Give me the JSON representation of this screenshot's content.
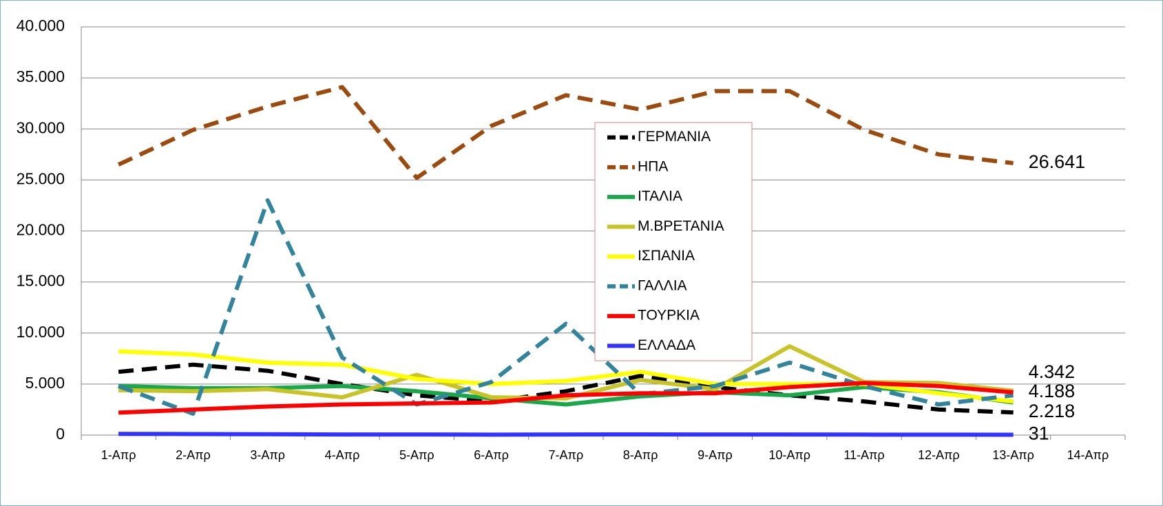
{
  "chart_data": {
    "type": "line",
    "categories": [
      "1-Απρ",
      "2-Απρ",
      "3-Απρ",
      "4-Απρ",
      "5-Απρ",
      "6-Απρ",
      "7-Απρ",
      "8-Απρ",
      "9-Απρ",
      "10-Απρ",
      "11-Απρ",
      "12-Απρ",
      "13-Απρ",
      "14-Απρ"
    ],
    "ylim": [
      0,
      40000
    ],
    "yticks": [
      0,
      {
        "value": 5000,
        "label": "5.000"
      },
      {
        "value": 10000,
        "label": "10.000"
      },
      {
        "value": 15000,
        "label": "15.000"
      },
      {
        "value": 20000,
        "label": "20.000"
      },
      {
        "value": 25000,
        "label": "25.000"
      },
      {
        "value": 30000,
        "label": "30.000"
      },
      {
        "value": 35000,
        "label": "35.000"
      },
      {
        "value": 40000,
        "label": "40.000"
      }
    ],
    "grid": true,
    "legend": "center",
    "series": [
      {
        "name": "ΓΕΡΜΑΝΙΑ",
        "color": "#000000",
        "dashed": true,
        "values": [
          6200,
          6900,
          6300,
          5000,
          3900,
          3300,
          4300,
          5800,
          4700,
          3900,
          3300,
          2500,
          2218,
          null
        ],
        "value_labels": [
          null,
          null,
          null,
          null,
          null,
          null,
          null,
          null,
          null,
          null,
          null,
          null,
          "2.218",
          null
        ]
      },
      {
        "name": "ΗΠΑ",
        "color": "#9c4a0e",
        "dashed": true,
        "values": [
          26500,
          29900,
          32200,
          34100,
          25200,
          30300,
          33300,
          31900,
          33700,
          33700,
          29900,
          27500,
          26641,
          null
        ],
        "value_labels": [
          null,
          null,
          null,
          null,
          null,
          null,
          null,
          null,
          null,
          null,
          null,
          null,
          "26.641",
          null
        ]
      },
      {
        "name": "ΙΤΑΛΙΑ",
        "color": "#1aa84a",
        "dashed": false,
        "values": [
          4800,
          4600,
          4600,
          4800,
          4300,
          3600,
          3000,
          3800,
          4200,
          3900,
          4700,
          4200,
          3200,
          null
        ]
      },
      {
        "name": "Μ.ΒΡΕΤΑΝΙΑ",
        "color": "#c8c428",
        "dashed": false,
        "values": [
          4400,
          4300,
          4500,
          3700,
          5900,
          3700,
          3600,
          5400,
          4500,
          8700,
          5200,
          5100,
          4342,
          null
        ],
        "value_labels": [
          null,
          null,
          null,
          null,
          null,
          null,
          null,
          null,
          null,
          null,
          null,
          null,
          "4.342",
          null
        ]
      },
      {
        "name": "ΙΣΠΑΝΙΑ",
        "color": "#ffff00",
        "dashed": false,
        "values": [
          8200,
          7900,
          7100,
          6900,
          5500,
          5000,
          5300,
          6200,
          5000,
          5000,
          5000,
          4100,
          3300,
          null
        ]
      },
      {
        "name": "ΓΑΛΛΙΑ",
        "color": "#31849b",
        "dashed": true,
        "values": [
          4800,
          2100,
          23000,
          7600,
          3000,
          5200,
          10900,
          4000,
          4800,
          7100,
          4800,
          3000,
          3900,
          null
        ]
      },
      {
        "name": "ΤΟΥΡΚΙΑ",
        "color": "#ff0000",
        "dashed": false,
        "values": [
          2200,
          2500,
          2800,
          3000,
          3100,
          3200,
          3900,
          4100,
          4100,
          4700,
          5100,
          4800,
          4188,
          null
        ],
        "value_labels": [
          null,
          null,
          null,
          null,
          null,
          null,
          null,
          null,
          null,
          null,
          null,
          null,
          "4.188",
          null
        ]
      },
      {
        "name": "ΕΛΛΑΔΑ",
        "color": "#3333ff",
        "dashed": false,
        "values": [
          120,
          100,
          80,
          60,
          60,
          40,
          60,
          70,
          60,
          60,
          50,
          40,
          31,
          null
        ],
        "value_labels": [
          null,
          null,
          null,
          null,
          null,
          null,
          null,
          null,
          null,
          null,
          null,
          null,
          "31",
          null
        ]
      }
    ]
  }
}
